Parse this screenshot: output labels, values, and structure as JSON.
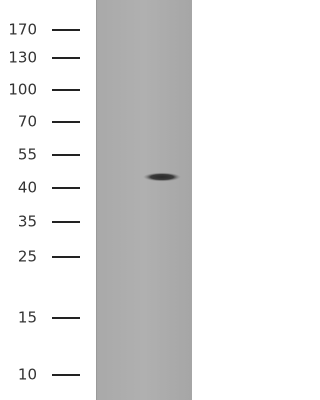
{
  "ladder": {
    "markers": [
      "170",
      "130",
      "100",
      "70",
      "55",
      "40",
      "35",
      "25",
      "15",
      "10"
    ]
  }
}
